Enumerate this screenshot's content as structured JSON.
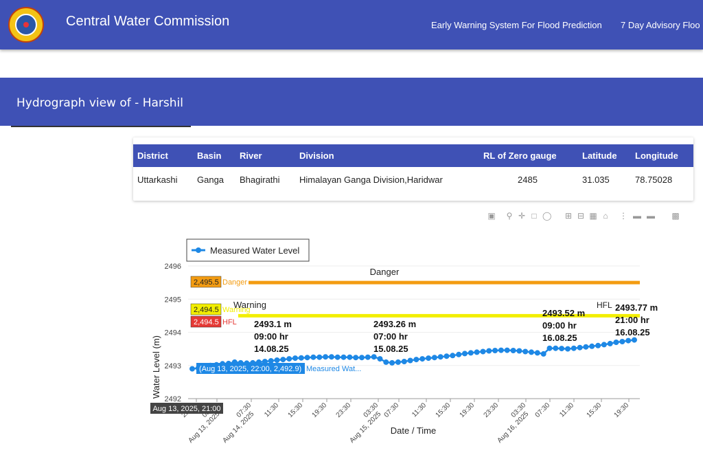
{
  "header": {
    "app_title": "Central Water Commission",
    "nav": [
      "Early Warning System For Flood Prediction",
      "7 Day Advisory Floo"
    ],
    "logo_icon": "cwc-emblem-icon"
  },
  "banner": {
    "title": "Hydrograph view of - Harshil"
  },
  "info_table": {
    "headers": [
      "District",
      "Basin",
      "River",
      "Division",
      "RL of Zero gauge",
      "Latitude",
      "Longitude"
    ],
    "row": [
      "Uttarkashi",
      "Ganga",
      "Bhagirathi",
      "Himalayan Ganga Division,Haridwar",
      "2485",
      "31.035",
      "78.75028"
    ]
  },
  "modebar": [
    "camera-icon",
    "zoom-icon",
    "pan-icon",
    "box-select-icon",
    "lasso-icon",
    "zoom-in-icon",
    "zoom-out-icon",
    "autoscale-icon",
    "home-icon",
    "spike-lines-icon",
    "hover-closest-icon",
    "hover-compare-icon",
    "plotly-logo-icon"
  ],
  "chart_data": {
    "type": "line",
    "ylabel": "Water Level (m)",
    "xlabel": "Date / Time",
    "ylim": [
      2492,
      2496
    ],
    "yticks": [
      "2492",
      "2493",
      "2494",
      "2495",
      "2496"
    ],
    "xticks": [
      "23:30",
      "Aug 13, 2025 03:30",
      "Aug 14, 2025 07:30",
      "11:30",
      "15:30",
      "19:30",
      "23:30",
      "Aug 15, 2025 03:30",
      "07:30",
      "11:30",
      "15:30",
      "19:30",
      "23:30",
      "Aug 16, 2025 03:30",
      "07:30",
      "11:30",
      "15:30",
      "19:30"
    ],
    "legend": {
      "entries": [
        "Measured Water Level"
      ],
      "position": "top-left"
    },
    "series": [
      {
        "name": "Measured Water Level",
        "color": "#1e88e5",
        "x": [
          0,
          1,
          2,
          3,
          4,
          5,
          6,
          7,
          8,
          9,
          10,
          11,
          12,
          13,
          14,
          15,
          16,
          17,
          18,
          19,
          20,
          21,
          22,
          23,
          24,
          25,
          26,
          27,
          28,
          29,
          30,
          31,
          32,
          33,
          34,
          35,
          36,
          37,
          38,
          39,
          40,
          41,
          42,
          43,
          44,
          45,
          46,
          47,
          48,
          49,
          50,
          51,
          52,
          53,
          54,
          55,
          56,
          57,
          58,
          59,
          60,
          61,
          62,
          63,
          64,
          65,
          66,
          67,
          68,
          69,
          70,
          71,
          72,
          73
        ],
        "values": [
          2492.9,
          2492.92,
          2492.95,
          2493.0,
          2493.02,
          2493.05,
          2493.06,
          2493.1,
          2493.08,
          2493.07,
          2493.08,
          2493.1,
          2493.12,
          2493.14,
          2493.16,
          2493.18,
          2493.2,
          2493.22,
          2493.23,
          2493.24,
          2493.25,
          2493.25,
          2493.26,
          2493.26,
          2493.25,
          2493.25,
          2493.25,
          2493.24,
          2493.24,
          2493.25,
          2493.26,
          2493.2,
          2493.1,
          2493.08,
          2493.1,
          2493.12,
          2493.15,
          2493.18,
          2493.2,
          2493.22,
          2493.24,
          2493.26,
          2493.28,
          2493.3,
          2493.33,
          2493.36,
          2493.38,
          2493.4,
          2493.42,
          2493.44,
          2493.45,
          2493.46,
          2493.46,
          2493.45,
          2493.44,
          2493.42,
          2493.4,
          2493.38,
          2493.35,
          2493.52,
          2493.52,
          2493.51,
          2493.5,
          2493.52,
          2493.54,
          2493.56,
          2493.58,
          2493.6,
          2493.63,
          2493.66,
          2493.7,
          2493.72,
          2493.75,
          2493.77
        ]
      }
    ],
    "reference_lines": [
      {
        "name": "Danger",
        "value": 2495.5,
        "label": "2,495.5",
        "side_text": "Danger",
        "color": "#f39c12"
      },
      {
        "name": "Warning",
        "value": 2494.5,
        "label": "2,494.5",
        "side_text": "Warning",
        "color": "#f2ee00"
      },
      {
        "name": "HFL",
        "value": 2494.5,
        "label": "2,494.5",
        "side_text": "HFL",
        "color": "#e53935"
      }
    ],
    "line_labels": [
      "Danger",
      "Warning",
      "HFL"
    ],
    "annotations": [
      {
        "lines": [
          "2493.1 m",
          "09:00 hr",
          "14.08.25"
        ]
      },
      {
        "lines": [
          "2493.26 m",
          "07:00 hr",
          "15.08.25"
        ]
      },
      {
        "lines": [
          "2493.52 m",
          "09:00 hr",
          "16.08.25"
        ]
      },
      {
        "lines": [
          "2493.77 m",
          "21:00 hr",
          "16.08.25"
        ]
      }
    ],
    "hover": {
      "x_label": "Aug 13, 2025, 21:00",
      "point_label": "(Aug 13, 2025, 22:00, 2,492.9)",
      "series_short": "Measured Wat..."
    }
  }
}
